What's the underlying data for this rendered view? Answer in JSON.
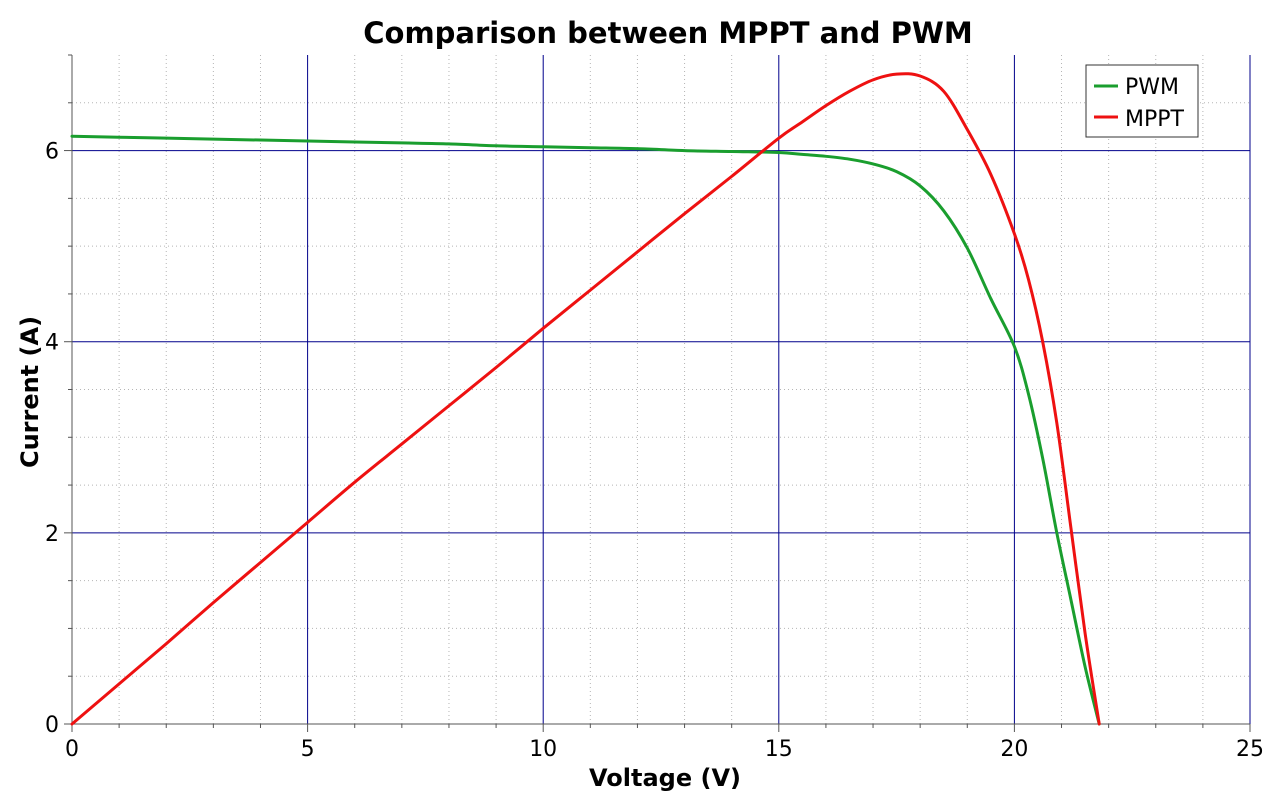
{
  "chart_data": {
    "type": "line",
    "title": "Comparison between MPPT and PWM",
    "xlabel": "Voltage (V)",
    "ylabel": "Current (A)",
    "xlim": [
      0,
      25
    ],
    "ylim": [
      0,
      7
    ],
    "x_ticks": [
      0,
      5,
      10,
      15,
      20,
      25
    ],
    "y_ticks": [
      0,
      2,
      4,
      6
    ],
    "x_tick_labels": [
      "0",
      "5",
      "10",
      "15",
      "20",
      "25"
    ],
    "y_tick_labels": [
      "0",
      "2",
      "4",
      "6"
    ],
    "grid": true,
    "legend_position": "top-right",
    "series": [
      {
        "name": "PWM",
        "color": "#1a9e2e",
        "x": [
          0,
          1,
          2,
          3,
          4,
          5,
          6,
          7,
          8,
          9,
          10,
          11,
          12,
          13,
          14,
          15,
          15.5,
          16,
          16.5,
          17,
          17.5,
          18,
          18.5,
          19,
          19.5,
          20,
          20.3,
          20.6,
          20.9,
          21.2,
          21.5,
          21.8
        ],
        "y": [
          6.15,
          6.14,
          6.13,
          6.12,
          6.11,
          6.1,
          6.09,
          6.08,
          6.07,
          6.05,
          6.04,
          6.03,
          6.02,
          6.0,
          5.99,
          5.98,
          5.96,
          5.94,
          5.91,
          5.86,
          5.78,
          5.63,
          5.37,
          4.98,
          4.45,
          3.95,
          3.45,
          2.78,
          2.0,
          1.3,
          0.6,
          0.0
        ]
      },
      {
        "name": "MPPT",
        "color": "#ee1111",
        "x": [
          0,
          1,
          2,
          3,
          4,
          5,
          6,
          7,
          8,
          9,
          10,
          11,
          12,
          13,
          14,
          15,
          15.5,
          16,
          16.5,
          17,
          17.5,
          18,
          18.5,
          19,
          19.5,
          20,
          20.3,
          20.6,
          20.9,
          21.2,
          21.5,
          21.8
        ],
        "y": [
          0,
          0.42,
          0.84,
          1.27,
          1.69,
          2.11,
          2.53,
          2.93,
          3.33,
          3.73,
          4.14,
          4.54,
          4.94,
          5.34,
          5.73,
          6.13,
          6.3,
          6.47,
          6.62,
          6.74,
          6.8,
          6.78,
          6.62,
          6.22,
          5.75,
          5.13,
          4.65,
          4.0,
          3.15,
          2.05,
          0.95,
          0.0
        ]
      }
    ]
  }
}
